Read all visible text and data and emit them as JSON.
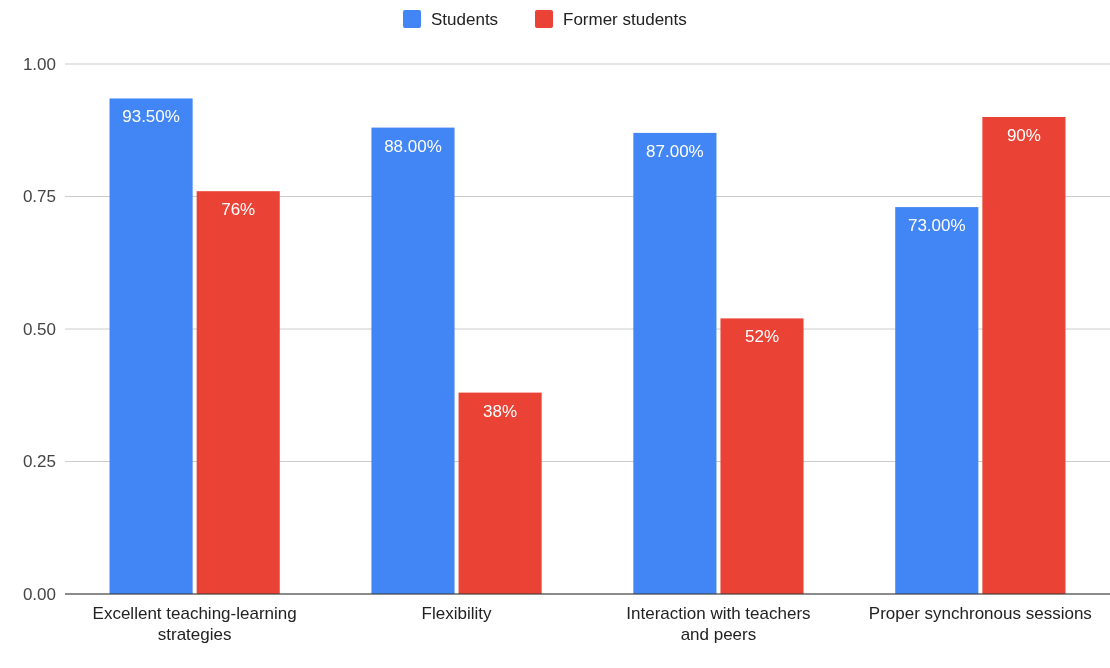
{
  "chart_data": {
    "type": "bar",
    "categories": [
      "Excellent teaching-learning strategies",
      "Flexibility",
      "Interaction with teachers and peers",
      "Proper synchronous sessions"
    ],
    "series": [
      {
        "name": "Students",
        "color": "#4285f4",
        "values": [
          0.935,
          0.88,
          0.87,
          0.73
        ],
        "value_labels": [
          "93.50%",
          "88.00%",
          "87.00%",
          "73.00%"
        ]
      },
      {
        "name": "Former students",
        "color": "#ea4335",
        "values": [
          0.76,
          0.38,
          0.52,
          0.9
        ],
        "value_labels": [
          "76%",
          "38%",
          "52%",
          "90%"
        ]
      }
    ],
    "ylim": [
      0,
      1
    ],
    "yticks": [
      {
        "value": 0,
        "label": "0.00"
      },
      {
        "value": 0.25,
        "label": "0.25"
      },
      {
        "value": 0.5,
        "label": "0.50"
      },
      {
        "value": 0.75,
        "label": "0.75"
      },
      {
        "value": 1,
        "label": "1.00"
      }
    ],
    "grid": "y",
    "legend": "top"
  }
}
